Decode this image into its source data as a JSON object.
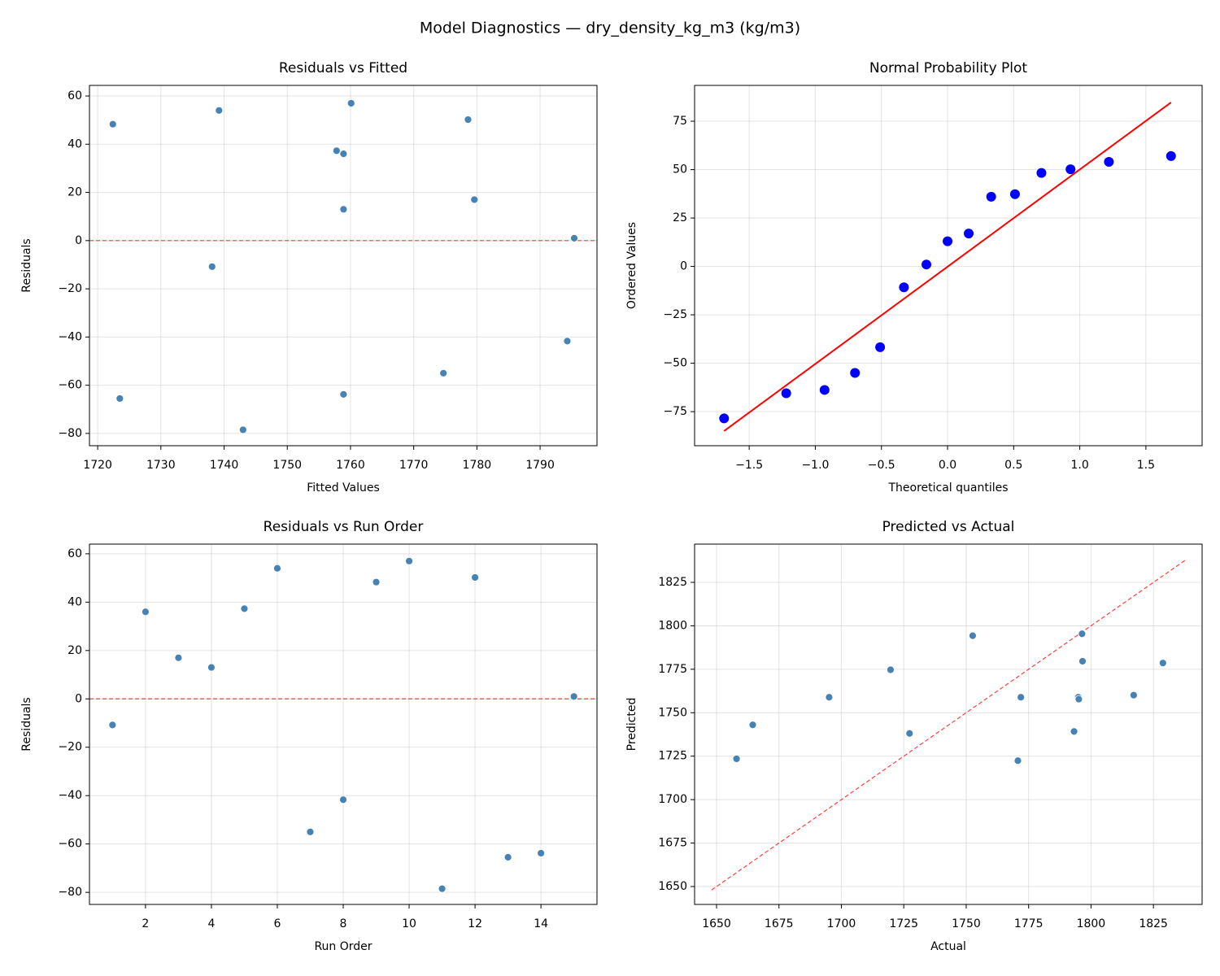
{
  "title": "Model Diagnostics — dry_density_kg_m3 (kg/m3)",
  "chart_data": [
    {
      "type": "scatter",
      "title": "Residuals vs Fitted",
      "xlabel": "Fitted Values",
      "ylabel": "Residuals",
      "x": [
        1738.1,
        1758.9,
        1779.6,
        1758.9,
        1757.8,
        1739.2,
        1774.7,
        1794.3,
        1722.4,
        1760.1,
        1743.0,
        1778.6,
        1723.5,
        1758.9,
        1795.4
      ],
      "values": [
        -10.8,
        36,
        17,
        13,
        37.3,
        54,
        -55,
        -41.7,
        48.3,
        57,
        -78.5,
        50.2,
        -65.5,
        -63.8,
        1
      ],
      "color": "#4682b4",
      "hline": {
        "y": 0,
        "color": "#ff0000",
        "style": "dashed"
      },
      "xlim": [
        1718.7,
        1799.0
      ],
      "ylim": [
        -85.1,
        64.4
      ],
      "xticks": [
        1720,
        1730,
        1740,
        1750,
        1760,
        1770,
        1780,
        1790
      ],
      "yticks": [
        {
          "value": -80,
          "label": "−80"
        },
        {
          "value": -60,
          "label": "−60"
        },
        {
          "value": -40,
          "label": "−40"
        },
        {
          "value": -20,
          "label": "−20"
        },
        0,
        20,
        40,
        60
      ],
      "grid": true
    },
    {
      "type": "scatter",
      "title": "Normal Probability Plot",
      "xlabel": "Theoretical quantiles",
      "ylabel": "Ordered Values",
      "x": [
        -1.69,
        -1.22,
        -0.93,
        -0.7,
        -0.51,
        -0.33,
        -0.16,
        0,
        0.16,
        0.33,
        0.51,
        0.71,
        0.93,
        1.22,
        1.69
      ],
      "values": [
        -78.5,
        -65.5,
        -63.8,
        -55,
        -41.7,
        -10.8,
        1,
        13,
        17,
        36,
        37.3,
        48.3,
        50.2,
        54,
        57
      ],
      "color": "#0000ff",
      "line": {
        "x": [
          -1.69,
          1.69
        ],
        "y": [
          -85,
          84.7
        ],
        "color": "#ff0000",
        "style": "solid"
      },
      "xlim": [
        -1.913,
        1.925
      ],
      "ylim": [
        -92.6,
        93.5
      ],
      "xticks": [
        {
          "value": -1.5,
          "label": "−1.5"
        },
        {
          "value": -1.0,
          "label": "−1.0"
        },
        {
          "value": -0.5,
          "label": "−0.5"
        },
        {
          "value": 0,
          "label": "0.0"
        },
        0.5,
        {
          "value": 1.0,
          "label": "1.0"
        },
        1.5
      ],
      "yticks": [
        {
          "value": -75,
          "label": "−75"
        },
        {
          "value": -50,
          "label": "−50"
        },
        {
          "value": -25,
          "label": "−25"
        },
        0,
        25,
        50,
        75
      ],
      "grid": true
    },
    {
      "type": "scatter",
      "title": "Residuals vs Run Order",
      "xlabel": "Run Order",
      "ylabel": "Residuals",
      "x": [
        1,
        2,
        3,
        4,
        5,
        6,
        7,
        8,
        9,
        10,
        11,
        12,
        13,
        14,
        15
      ],
      "values": [
        -10.8,
        36,
        17,
        13,
        37.3,
        54,
        -55,
        -41.7,
        48.3,
        57,
        -78.5,
        50.2,
        -65.5,
        -63.8,
        1
      ],
      "color": "#4682b4",
      "hline": {
        "y": 0,
        "color": "#ff0000",
        "style": "dashed"
      },
      "xlim": [
        0.3,
        15.7
      ],
      "ylim": [
        -85.0,
        64.0
      ],
      "xticks": [
        2,
        4,
        6,
        8,
        10,
        12,
        14
      ],
      "yticks": [
        {
          "value": -80,
          "label": "−80"
        },
        {
          "value": -60,
          "label": "−60"
        },
        {
          "value": -40,
          "label": "−40"
        },
        {
          "value": -20,
          "label": "−20"
        },
        0,
        20,
        40,
        60
      ],
      "grid": true
    },
    {
      "type": "scatter",
      "title": "Predicted vs Actual",
      "xlabel": "Actual",
      "ylabel": "Predicted",
      "x": [
        1727.3,
        1794.9,
        1796.6,
        1771.9,
        1795.1,
        1793.2,
        1719.7,
        1752.6,
        1770.7,
        1817.1,
        1664.5,
        1828.8,
        1658.0,
        1695.1,
        1796.4
      ],
      "values": [
        1738.1,
        1758.9,
        1779.6,
        1758.9,
        1757.8,
        1739.2,
        1774.7,
        1794.3,
        1722.4,
        1760.1,
        1743.0,
        1778.6,
        1723.5,
        1758.9,
        1795.4
      ],
      "color": "#4682b4",
      "line": {
        "x": [
          1648,
          1838
        ],
        "y": [
          1648,
          1838
        ],
        "color": "#ff0000",
        "style": "dashed"
      },
      "xlim": [
        1641.2,
        1844.5
      ],
      "ylim": [
        1639.7,
        1847.0
      ],
      "xticks": [
        1650,
        1675,
        1700,
        1725,
        1750,
        1775,
        1800,
        1825
      ],
      "yticks": [
        1650,
        1675,
        1700,
        1725,
        1750,
        1775,
        1800,
        1825
      ],
      "grid": true
    }
  ]
}
